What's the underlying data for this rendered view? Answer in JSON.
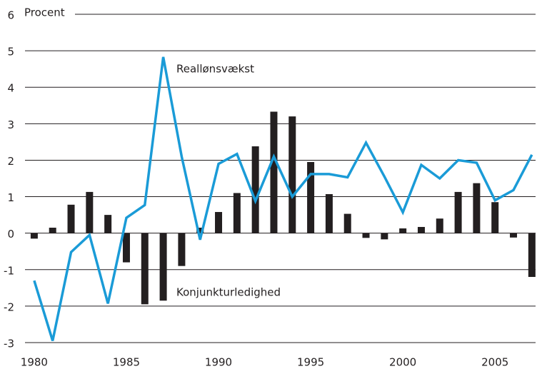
{
  "chart_data": {
    "type": "bar-line",
    "y_label": "Procent",
    "x": [
      1980,
      1981,
      1982,
      1983,
      1984,
      1985,
      1986,
      1987,
      1988,
      1989,
      1990,
      1991,
      1992,
      1993,
      1994,
      1995,
      1996,
      1997,
      1998,
      1999,
      2000,
      2001,
      2002,
      2003,
      2004,
      2005,
      2006,
      2007
    ],
    "series": [
      {
        "name": "Reallønsvækst",
        "type": "line",
        "color": "#1a9bd7",
        "values": [
          -1.3,
          -2.95,
          -0.52,
          -0.05,
          -1.93,
          0.42,
          0.77,
          4.83,
          2.1,
          -0.18,
          1.9,
          2.17,
          0.88,
          2.1,
          1.0,
          1.62,
          1.62,
          1.53,
          2.48,
          1.55,
          0.57,
          1.87,
          1.5,
          2.0,
          1.93,
          0.9,
          1.18,
          2.15
        ]
      },
      {
        "name": "Konjunkturledighed",
        "type": "bar",
        "color": "#231f20",
        "values": [
          -0.15,
          0.15,
          0.78,
          1.13,
          0.5,
          -0.8,
          -1.95,
          -1.85,
          -0.9,
          0.15,
          0.58,
          1.1,
          2.38,
          3.33,
          3.2,
          1.95,
          1.07,
          0.53,
          -0.13,
          -0.17,
          0.13,
          0.17,
          0.4,
          1.13,
          1.37,
          0.85,
          -0.12,
          -1.2
        ]
      }
    ],
    "xlim": [
      1979.5,
      2007.2
    ],
    "xticks": [
      1980,
      1985,
      1990,
      1995,
      2000,
      2005
    ],
    "ylim": [
      -3,
      6
    ],
    "yticks": [
      -3,
      -2,
      -1,
      0,
      1,
      2,
      3,
      4,
      5,
      6
    ],
    "grid": true
  }
}
